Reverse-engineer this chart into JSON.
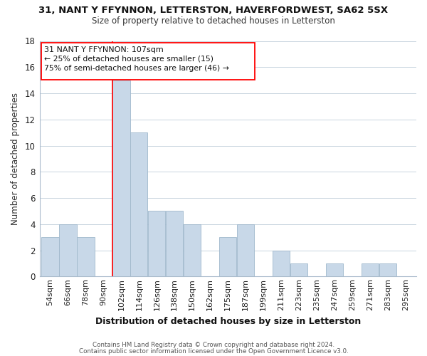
{
  "title_line1": "31, NANT Y FFYNNON, LETTERSTON, HAVERFORDWEST, SA62 5SX",
  "title_line2": "Size of property relative to detached houses in Letterston",
  "xlabel": "Distribution of detached houses by size in Letterston",
  "ylabel": "Number of detached properties",
  "footer_line1": "Contains HM Land Registry data © Crown copyright and database right 2024.",
  "footer_line2": "Contains public sector information licensed under the Open Government Licence v3.0.",
  "bar_labels": [
    "54sqm",
    "66sqm",
    "78sqm",
    "90sqm",
    "102sqm",
    "114sqm",
    "126sqm",
    "138sqm",
    "150sqm",
    "162sqm",
    "175sqm",
    "187sqm",
    "199sqm",
    "211sqm",
    "223sqm",
    "235sqm",
    "247sqm",
    "259sqm",
    "271sqm",
    "283sqm",
    "295sqm"
  ],
  "bar_heights": [
    3,
    4,
    3,
    0,
    15,
    11,
    5,
    5,
    4,
    0,
    3,
    4,
    0,
    2,
    1,
    0,
    1,
    0,
    1,
    1,
    0
  ],
  "bar_color": "#c8d8e8",
  "bar_edge_color": "#a0b8cc",
  "redline_bar_index": 4,
  "annotation_line1": "31 NANT Y FFYNNON: 107sqm",
  "annotation_line2": "← 25% of detached houses are smaller (15)",
  "annotation_line3": "75% of semi-detached houses are larger (46) →",
  "ylim_max": 18,
  "background_color": "#ffffff",
  "grid_color": "#c8d4de",
  "spine_color": "#aabbcc"
}
